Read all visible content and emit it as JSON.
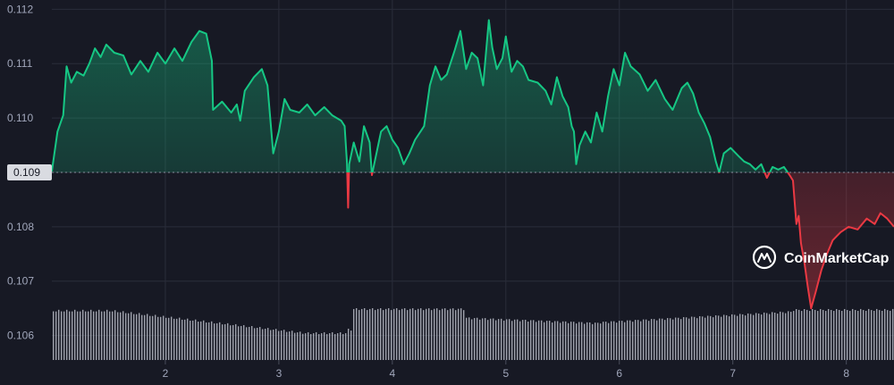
{
  "chart_data": {
    "type": "line",
    "title": "",
    "xlabel": "",
    "ylabel": "",
    "x_ticks": [
      "2",
      "3",
      "4",
      "5",
      "6",
      "7",
      "8"
    ],
    "y_ticks": [
      "0.112",
      "0.111",
      "0.110",
      "0.109",
      "0.108",
      "0.107",
      "0.106"
    ],
    "xlim": [
      1.0,
      8.42
    ],
    "ylim": [
      0.10555,
      0.11217
    ],
    "grid": true,
    "reference_line": {
      "value": 0.109,
      "label": "0.109"
    },
    "colors": {
      "above": "#16c784",
      "below": "#ea3943",
      "volume": "#b9bcc7",
      "grid": "#2a2d3a",
      "background": "#171924"
    },
    "series": [
      {
        "points": [
          [
            1.0,
            0.10902
          ],
          [
            1.05,
            0.10975
          ],
          [
            1.1,
            0.11005
          ],
          [
            1.13,
            0.11095
          ],
          [
            1.17,
            0.11065
          ],
          [
            1.22,
            0.11085
          ],
          [
            1.28,
            0.11078
          ],
          [
            1.33,
            0.111
          ],
          [
            1.38,
            0.11128
          ],
          [
            1.43,
            0.11112
          ],
          [
            1.48,
            0.11135
          ],
          [
            1.55,
            0.1112
          ],
          [
            1.63,
            0.11115
          ],
          [
            1.7,
            0.1108
          ],
          [
            1.78,
            0.11105
          ],
          [
            1.85,
            0.11085
          ],
          [
            1.93,
            0.1112
          ],
          [
            2.0,
            0.111
          ],
          [
            2.08,
            0.11128
          ],
          [
            2.15,
            0.11105
          ],
          [
            2.23,
            0.1114
          ],
          [
            2.3,
            0.1116
          ],
          [
            2.36,
            0.11155
          ],
          [
            2.41,
            0.11105
          ],
          [
            2.42,
            0.11015
          ],
          [
            2.5,
            0.1103
          ],
          [
            2.58,
            0.1101
          ],
          [
            2.63,
            0.11025
          ],
          [
            2.66,
            0.10995
          ],
          [
            2.7,
            0.1105
          ],
          [
            2.78,
            0.11075
          ],
          [
            2.85,
            0.1109
          ],
          [
            2.9,
            0.1106
          ],
          [
            2.95,
            0.10935
          ],
          [
            3.0,
            0.10975
          ],
          [
            3.05,
            0.11035
          ],
          [
            3.1,
            0.11015
          ],
          [
            3.18,
            0.1101
          ],
          [
            3.25,
            0.11025
          ],
          [
            3.32,
            0.11005
          ],
          [
            3.4,
            0.1102
          ],
          [
            3.47,
            0.11005
          ],
          [
            3.55,
            0.10995
          ],
          [
            3.58,
            0.10985
          ],
          [
            3.6,
            0.10918
          ],
          [
            3.61,
            0.10835
          ],
          [
            3.62,
            0.10915
          ],
          [
            3.66,
            0.10955
          ],
          [
            3.71,
            0.1092
          ],
          [
            3.75,
            0.10985
          ],
          [
            3.8,
            0.10955
          ],
          [
            3.82,
            0.10895
          ],
          [
            3.85,
            0.10925
          ],
          [
            3.9,
            0.10975
          ],
          [
            3.95,
            0.10985
          ],
          [
            4.0,
            0.1096
          ],
          [
            4.05,
            0.10945
          ],
          [
            4.1,
            0.10915
          ],
          [
            4.15,
            0.10935
          ],
          [
            4.2,
            0.1096
          ],
          [
            4.28,
            0.10985
          ],
          [
            4.33,
            0.1106
          ],
          [
            4.38,
            0.11095
          ],
          [
            4.43,
            0.1107
          ],
          [
            4.48,
            0.1108
          ],
          [
            4.55,
            0.11125
          ],
          [
            4.6,
            0.1116
          ],
          [
            4.65,
            0.1109
          ],
          [
            4.7,
            0.1112
          ],
          [
            4.75,
            0.1111
          ],
          [
            4.8,
            0.1106
          ],
          [
            4.85,
            0.1118
          ],
          [
            4.88,
            0.1113
          ],
          [
            4.92,
            0.1109
          ],
          [
            4.97,
            0.1111
          ],
          [
            5.0,
            0.1115
          ],
          [
            5.05,
            0.11085
          ],
          [
            5.1,
            0.11105
          ],
          [
            5.15,
            0.11095
          ],
          [
            5.2,
            0.1107
          ],
          [
            5.28,
            0.11065
          ],
          [
            5.35,
            0.1105
          ],
          [
            5.4,
            0.11025
          ],
          [
            5.45,
            0.11075
          ],
          [
            5.5,
            0.1104
          ],
          [
            5.55,
            0.1102
          ],
          [
            5.58,
            0.10985
          ],
          [
            5.6,
            0.10975
          ],
          [
            5.62,
            0.10915
          ],
          [
            5.65,
            0.1095
          ],
          [
            5.7,
            0.10975
          ],
          [
            5.75,
            0.10955
          ],
          [
            5.8,
            0.1101
          ],
          [
            5.85,
            0.10975
          ],
          [
            5.9,
            0.1104
          ],
          [
            5.95,
            0.1109
          ],
          [
            6.0,
            0.1106
          ],
          [
            6.05,
            0.1112
          ],
          [
            6.1,
            0.11095
          ],
          [
            6.18,
            0.1108
          ],
          [
            6.25,
            0.1105
          ],
          [
            6.32,
            0.1107
          ],
          [
            6.4,
            0.11035
          ],
          [
            6.47,
            0.11015
          ],
          [
            6.55,
            0.11055
          ],
          [
            6.6,
            0.11065
          ],
          [
            6.65,
            0.11045
          ],
          [
            6.7,
            0.1101
          ],
          [
            6.75,
            0.1099
          ],
          [
            6.8,
            0.10965
          ],
          [
            6.85,
            0.1092
          ],
          [
            6.88,
            0.109
          ],
          [
            6.92,
            0.10935
          ],
          [
            6.98,
            0.10945
          ],
          [
            7.05,
            0.1093
          ],
          [
            7.1,
            0.1092
          ],
          [
            7.15,
            0.10915
          ],
          [
            7.2,
            0.10905
          ],
          [
            7.25,
            0.10915
          ],
          [
            7.3,
            0.1089
          ],
          [
            7.35,
            0.1091
          ],
          [
            7.4,
            0.10905
          ],
          [
            7.45,
            0.1091
          ],
          [
            7.5,
            0.10895
          ],
          [
            7.53,
            0.10885
          ],
          [
            7.56,
            0.10805
          ],
          [
            7.58,
            0.1082
          ],
          [
            7.6,
            0.1077
          ],
          [
            7.63,
            0.10735
          ],
          [
            7.66,
            0.1069
          ],
          [
            7.69,
            0.1065
          ],
          [
            7.73,
            0.1068
          ],
          [
            7.78,
            0.1072
          ],
          [
            7.83,
            0.1075
          ],
          [
            7.88,
            0.10775
          ],
          [
            7.95,
            0.1079
          ],
          [
            8.02,
            0.108
          ],
          [
            8.1,
            0.10795
          ],
          [
            8.18,
            0.10815
          ],
          [
            8.25,
            0.10805
          ],
          [
            8.3,
            0.10825
          ],
          [
            8.36,
            0.10815
          ],
          [
            8.42,
            0.108
          ]
        ]
      }
    ]
  },
  "watermark": {
    "text": "CoinMarketCap",
    "icon": "coinmarketcap-logo-icon"
  }
}
